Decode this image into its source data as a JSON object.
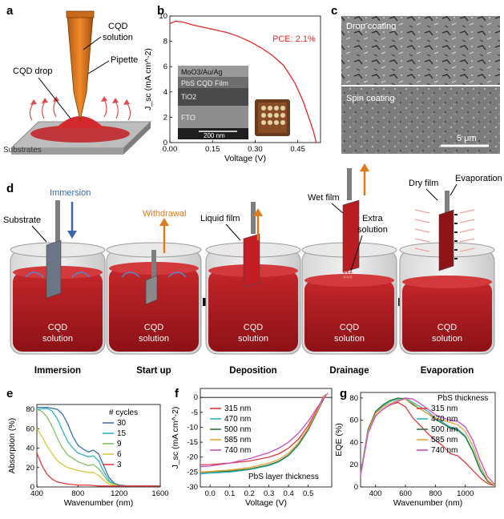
{
  "panels": {
    "a": {
      "letter": "a",
      "labels": {
        "cqd_solution": "CQD solution",
        "cqd_solution_l1": "CQD",
        "cqd_solution_l2": "solution",
        "pipette": "Pipette",
        "cqd_drop": "CQD drop",
        "substrates": "Substrates"
      }
    },
    "b": {
      "letter": "b",
      "pce": "PCE: 2.1%",
      "xlabel": "Voltage (V)",
      "ylabel": "J_sc (mA cm^-2)",
      "scale_bar": "200 nm",
      "stack_layers": [
        "MoO3/Au/Ag",
        "PbS CQD Film",
        "TiO2",
        "FTO"
      ]
    },
    "c": {
      "letter": "c",
      "top_label": "Drop coating",
      "bottom_label": "Spin coating",
      "scale_bar": "5 μm"
    },
    "d": {
      "letter": "d",
      "stages": [
        {
          "name": "Immersion",
          "solution_l1": "CQD",
          "solution_l2": "solution"
        },
        {
          "name": "Start up",
          "solution_l1": "CQD",
          "solution_l2": "solution"
        },
        {
          "name": "Deposition",
          "solution_l1": "CQD",
          "solution_l2": "solution"
        },
        {
          "name": "Drainage",
          "solution_l1": "CQD",
          "solution_l2": "solution"
        },
        {
          "name": "Evaporation",
          "solution_l1": "CQD",
          "solution_l2": "solution"
        }
      ],
      "annotations": {
        "immersion": "Immersion",
        "substrate": "Substrate",
        "withdrawal": "Withdrawal",
        "liquid_film": "Liquid film",
        "wet_film": "Wet film",
        "extra_solution_l1": "Extra",
        "extra_solution_l2": "solution",
        "dry_film": "Dry film",
        "evaporation": "Evaporation"
      }
    },
    "e": {
      "letter": "e"
    },
    "f": {
      "letter": "f"
    },
    "g": {
      "letter": "g"
    }
  },
  "chart_data": [
    {
      "id": "b",
      "type": "line",
      "xlabel": "Voltage (V)",
      "ylabel": "J_sc (mA cm^-2)",
      "xlim": [
        0.0,
        0.53
      ],
      "ylim": [
        0,
        10
      ],
      "xticks": [
        "0.00",
        "0.15",
        "0.30",
        "0.45"
      ],
      "yticks": [
        "0",
        "2",
        "4",
        "6",
        "8",
        "10"
      ],
      "series": [
        {
          "color": "#e02a2a",
          "x": [
            0.0,
            0.02,
            0.05,
            0.08,
            0.12,
            0.16,
            0.2,
            0.24,
            0.28,
            0.32,
            0.36,
            0.4,
            0.44,
            0.47,
            0.49,
            0.505,
            0.515
          ],
          "y": [
            9.4,
            9.6,
            9.5,
            9.3,
            9.1,
            8.9,
            8.7,
            8.4,
            8.0,
            7.5,
            6.9,
            6.1,
            4.7,
            3.2,
            1.9,
            0.9,
            0.0
          ]
        }
      ]
    },
    {
      "id": "e",
      "type": "line",
      "xlabel": "Wavenumber (nm)",
      "ylabel": "Absorption (%)",
      "xlim": [
        400,
        1600
      ],
      "ylim": [
        0,
        85
      ],
      "xticks": [
        "400",
        "800",
        "1200",
        "1600"
      ],
      "yticks": [
        "0",
        "20",
        "40",
        "60",
        "80"
      ],
      "legend_title": "# cycles",
      "series": [
        {
          "name": "30",
          "color": "#3a6fb0",
          "x": [
            400,
            500,
            600,
            650,
            700,
            750,
            800,
            850,
            900,
            950,
            1000,
            1050,
            1100,
            1150,
            1200,
            1300,
            1600
          ],
          "y": [
            82,
            82,
            80,
            75,
            65,
            52,
            43,
            39,
            36,
            38,
            34,
            22,
            10,
            4,
            2,
            1,
            1
          ]
        },
        {
          "name": "15",
          "color": "#2fb4c4",
          "x": [
            400,
            500,
            550,
            600,
            650,
            700,
            750,
            800,
            850,
            900,
            950,
            1000,
            1050,
            1100,
            1150,
            1200,
            1600
          ],
          "y": [
            80,
            81,
            78,
            70,
            58,
            47,
            40,
            35,
            33,
            31,
            32,
            27,
            16,
            7,
            3,
            1,
            1
          ]
        },
        {
          "name": "9",
          "color": "#7dc462",
          "x": [
            400,
            450,
            500,
            550,
            600,
            650,
            700,
            800,
            900,
            950,
            1000,
            1050,
            1100,
            1200,
            1600
          ],
          "y": [
            80,
            78,
            72,
            62,
            50,
            40,
            33,
            26,
            22,
            23,
            19,
            12,
            5,
            1,
            1
          ]
        },
        {
          "name": "6",
          "color": "#e0c43a",
          "x": [
            400,
            450,
            500,
            550,
            600,
            650,
            700,
            800,
            900,
            950,
            1000,
            1050,
            1100,
            1200,
            1600
          ],
          "y": [
            60,
            52,
            42,
            34,
            27,
            23,
            20,
            17,
            15,
            15,
            12,
            7,
            3,
            1,
            1
          ]
        },
        {
          "name": "3",
          "color": "#e03a3a",
          "x": [
            400,
            450,
            500,
            550,
            600,
            700,
            800,
            900,
            1000,
            1100,
            1200,
            1600
          ],
          "y": [
            35,
            22,
            13,
            8,
            5,
            3,
            2,
            2,
            1,
            1,
            1,
            1
          ]
        }
      ]
    },
    {
      "id": "f",
      "type": "line",
      "xlabel": "Voltage (V)",
      "ylabel": "J_sc (mA cm^-2)",
      "xlim": [
        -0.05,
        0.62
      ],
      "ylim": [
        -30,
        3
      ],
      "xticks": [
        "0.0",
        "0.1",
        "0.2",
        "0.3",
        "0.4",
        "0.5"
      ],
      "yticks": [
        "0",
        "-5",
        "-10",
        "-15",
        "-20",
        "-25",
        "-30"
      ],
      "annotation": "PbS layer thickness",
      "series": [
        {
          "name": "315 nm",
          "color": "#e03a3a",
          "x": [
            -0.05,
            0.0,
            0.1,
            0.2,
            0.3,
            0.35,
            0.4,
            0.45,
            0.5,
            0.55,
            0.58
          ],
          "y": [
            -22.6,
            -22.5,
            -22.0,
            -21.3,
            -20.0,
            -18.9,
            -17.0,
            -14.0,
            -9.5,
            -3.5,
            0.5
          ]
        },
        {
          "name": "470 nm",
          "color": "#2fb4c4",
          "x": [
            -0.05,
            0.0,
            0.1,
            0.2,
            0.3,
            0.35,
            0.4,
            0.45,
            0.5,
            0.55,
            0.59
          ],
          "y": [
            -25.6,
            -25.4,
            -25.0,
            -24.2,
            -22.8,
            -21.6,
            -19.5,
            -16.0,
            -11.0,
            -4.5,
            1.0
          ]
        },
        {
          "name": "500 nm",
          "color": "#2e7a3a",
          "x": [
            -0.05,
            0.0,
            0.1,
            0.2,
            0.3,
            0.35,
            0.4,
            0.45,
            0.5,
            0.55,
            0.59
          ],
          "y": [
            -25.2,
            -25.0,
            -24.7,
            -24.0,
            -22.6,
            -21.4,
            -19.3,
            -15.8,
            -10.8,
            -4.2,
            1.0
          ]
        },
        {
          "name": "585 nm",
          "color": "#e8a23a",
          "x": [
            -0.05,
            0.0,
            0.1,
            0.2,
            0.3,
            0.35,
            0.4,
            0.45,
            0.5,
            0.55,
            0.585
          ],
          "y": [
            -25.0,
            -24.8,
            -24.3,
            -23.5,
            -22.0,
            -20.8,
            -18.7,
            -15.2,
            -10.3,
            -4.0,
            0.8
          ]
        },
        {
          "name": "740 nm",
          "color": "#c84fc8",
          "x": [
            -0.05,
            0.0,
            0.1,
            0.2,
            0.3,
            0.35,
            0.4,
            0.45,
            0.5,
            0.55,
            0.6
          ],
          "y": [
            -23.2,
            -23.0,
            -22.0,
            -20.5,
            -18.5,
            -17.0,
            -15.0,
            -12.0,
            -8.0,
            -3.0,
            1.5
          ]
        }
      ]
    },
    {
      "id": "g",
      "type": "line",
      "xlabel": "Wavenumber (nm)",
      "ylabel": "EQE (%)",
      "xlim": [
        300,
        1200
      ],
      "ylim": [
        0,
        85
      ],
      "xticks": [
        "400",
        "600",
        "800",
        "1000"
      ],
      "yticks": [
        "0",
        "20",
        "40",
        "60",
        "80"
      ],
      "legend_title": "PbS thickness",
      "series": [
        {
          "name": "315 nm",
          "color": "#e03a3a",
          "x": [
            300,
            350,
            400,
            450,
            500,
            550,
            600,
            650,
            700,
            750,
            800,
            850,
            900,
            950,
            1000,
            1050,
            1100,
            1150,
            1200
          ],
          "y": [
            12,
            50,
            64,
            70,
            74,
            76,
            72,
            62,
            55,
            48,
            42,
            37,
            30,
            28,
            22,
            15,
            8,
            3,
            1
          ]
        },
        {
          "name": "470 nm",
          "color": "#2fb4c4",
          "x": [
            300,
            350,
            400,
            450,
            500,
            550,
            600,
            650,
            700,
            750,
            800,
            850,
            900,
            950,
            1000,
            1050,
            1100,
            1150,
            1200
          ],
          "y": [
            12,
            52,
            67,
            73,
            77,
            79,
            80,
            76,
            72,
            68,
            62,
            58,
            54,
            52,
            46,
            33,
            16,
            5,
            1
          ]
        },
        {
          "name": "500 nm",
          "color": "#2e7a3a",
          "x": [
            300,
            350,
            400,
            450,
            500,
            550,
            600,
            650,
            700,
            750,
            800,
            850,
            900,
            950,
            1000,
            1050,
            1100,
            1150,
            1200
          ],
          "y": [
            11,
            51,
            68,
            74,
            78,
            80,
            79,
            74,
            70,
            66,
            61,
            57,
            53,
            51,
            45,
            32,
            15,
            5,
            1
          ]
        },
        {
          "name": "585 nm",
          "color": "#e8a23a",
          "x": [
            300,
            350,
            400,
            450,
            500,
            550,
            600,
            650,
            700,
            750,
            800,
            850,
            900,
            950,
            1000,
            1050,
            1100,
            1150,
            1200
          ],
          "y": [
            11,
            50,
            66,
            72,
            75,
            78,
            79,
            75,
            70,
            66,
            62,
            60,
            58,
            56,
            50,
            37,
            19,
            6,
            1
          ]
        },
        {
          "name": "740 nm",
          "color": "#c84fc8",
          "x": [
            300,
            350,
            400,
            450,
            500,
            550,
            600,
            650,
            700,
            750,
            800,
            850,
            900,
            950,
            1000,
            1050,
            1100,
            1150,
            1200
          ],
          "y": [
            10,
            48,
            64,
            70,
            74,
            77,
            80,
            79,
            75,
            70,
            65,
            62,
            60,
            59,
            54,
            42,
            24,
            9,
            2
          ]
        }
      ]
    }
  ]
}
